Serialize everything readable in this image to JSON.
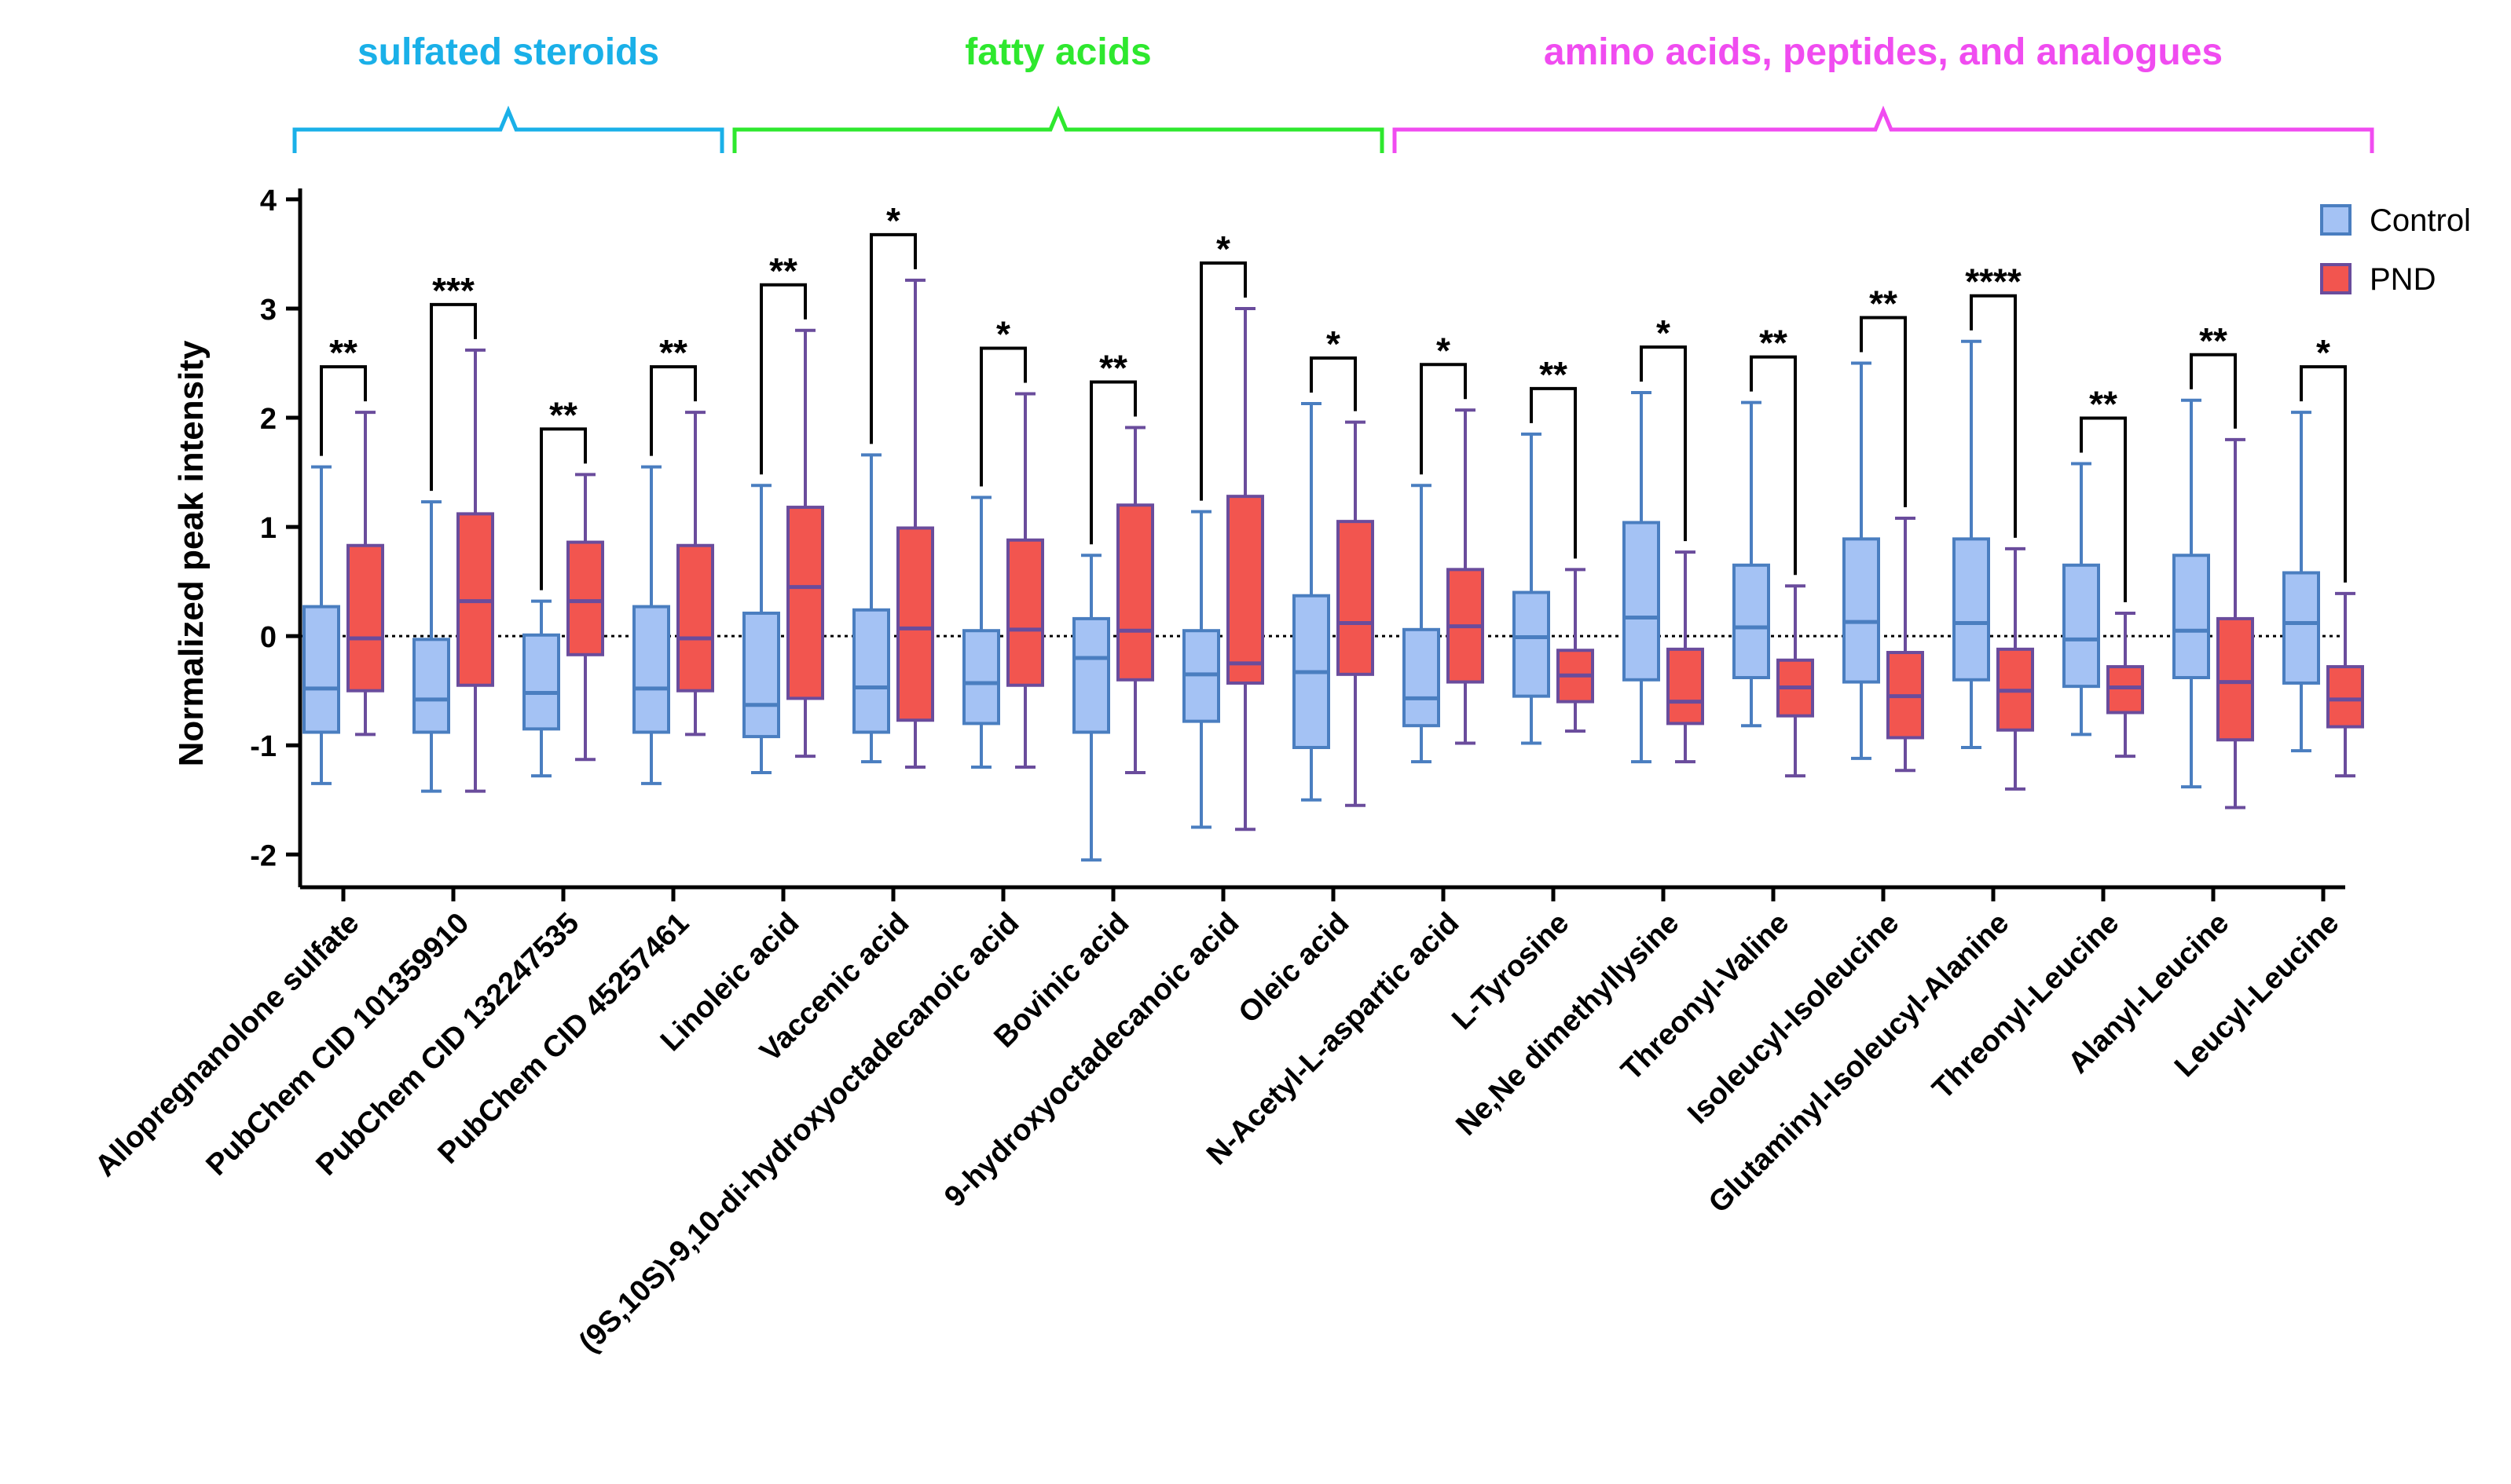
{
  "chart_data": {
    "type": "box",
    "title": "",
    "xlabel": "",
    "ylabel": "Normalized peak intensity",
    "ylim": [
      -2.3,
      4.1
    ],
    "yticks": [
      -2,
      -1,
      0,
      1,
      2,
      3,
      4
    ],
    "ytick_labels": [
      "-2",
      "-1",
      "0",
      "1",
      "2",
      "3",
      "4"
    ],
    "reference_line": 0,
    "legend": [
      {
        "name": "Control",
        "color": "#a4c2f4",
        "edge": "#4a7ec0"
      },
      {
        "name": "PND",
        "color": "#f2554f",
        "edge": "#6a4c9c"
      }
    ],
    "legend_position": "top-right",
    "groups": [
      {
        "label": "sulfated steroids",
        "color": "#1ab0e8",
        "start": 0,
        "end": 3
      },
      {
        "label": "fatty acids",
        "color": "#2ee82e",
        "start": 4,
        "end": 9
      },
      {
        "label": "amino acids, peptides, and analogues",
        "color": "#f04cf0",
        "start": 10,
        "end": 18
      }
    ],
    "categories": [
      "Allopregnanolone sulfate",
      "PubChem CID 101359910",
      "PubChem CID 132247535",
      "PubChem CID 45257461",
      "Linoleic acid",
      "Vaccenic acid",
      "(9S,10S)-9,10-di-hydroxyoctadecanoic acid",
      "Bovinic acid",
      "9-hydroxyoctadecanoic acid",
      "Oleic acid",
      "N-Acetyl-L-aspartic acid",
      "L-Tyrosine",
      "Ne,Ne dimethyllysine",
      "Threonyl-Valine",
      "Isoleucyl-Isoleucine",
      "Glutaminyl-Isoleucyl-Alanine",
      "Threonyl-Leucine",
      "Alanyl-Leucine",
      "Leucyl-Leucine"
    ],
    "series": [
      {
        "name": "Control",
        "boxes": [
          {
            "min": -1.35,
            "q1": -0.88,
            "median": -0.48,
            "q3": 0.27,
            "max": 1.55
          },
          {
            "min": -1.42,
            "q1": -0.88,
            "median": -0.58,
            "q3": -0.03,
            "max": 1.23
          },
          {
            "min": -1.28,
            "q1": -0.85,
            "median": -0.52,
            "q3": 0.01,
            "max": 0.32
          },
          {
            "min": -1.35,
            "q1": -0.88,
            "median": -0.48,
            "q3": 0.27,
            "max": 1.55
          },
          {
            "min": -1.25,
            "q1": -0.92,
            "median": -0.63,
            "q3": 0.21,
            "max": 1.38
          },
          {
            "min": -1.15,
            "q1": -0.88,
            "median": -0.47,
            "q3": 0.24,
            "max": 1.66
          },
          {
            "min": -1.2,
            "q1": -0.8,
            "median": -0.43,
            "q3": 0.05,
            "max": 1.27
          },
          {
            "min": -2.05,
            "q1": -0.88,
            "median": -0.2,
            "q3": 0.16,
            "max": 0.74
          },
          {
            "min": -1.75,
            "q1": -0.78,
            "median": -0.35,
            "q3": 0.05,
            "max": 1.14
          },
          {
            "min": -1.5,
            "q1": -1.02,
            "median": -0.33,
            "q3": 0.37,
            "max": 2.13
          },
          {
            "min": -1.15,
            "q1": -0.82,
            "median": -0.57,
            "q3": 0.06,
            "max": 1.38
          },
          {
            "min": -0.98,
            "q1": -0.55,
            "median": -0.01,
            "q3": 0.4,
            "max": 1.85
          },
          {
            "min": -1.15,
            "q1": -0.4,
            "median": 0.17,
            "q3": 1.04,
            "max": 2.23
          },
          {
            "min": -0.82,
            "q1": -0.38,
            "median": 0.08,
            "q3": 0.65,
            "max": 2.14
          },
          {
            "min": -1.12,
            "q1": -0.42,
            "median": 0.13,
            "q3": 0.89,
            "max": 2.5
          },
          {
            "min": -1.02,
            "q1": -0.4,
            "median": 0.12,
            "q3": 0.89,
            "max": 2.7
          },
          {
            "min": -0.9,
            "q1": -0.46,
            "median": -0.03,
            "q3": 0.65,
            "max": 1.58
          },
          {
            "min": -1.38,
            "q1": -0.38,
            "median": 0.05,
            "q3": 0.74,
            "max": 2.16
          },
          {
            "min": -1.05,
            "q1": -0.43,
            "median": 0.12,
            "q3": 0.58,
            "max": 2.05
          }
        ]
      },
      {
        "name": "PND",
        "boxes": [
          {
            "min": -0.9,
            "q1": -0.5,
            "median": -0.02,
            "q3": 0.83,
            "max": 2.05
          },
          {
            "min": -1.42,
            "q1": -0.45,
            "median": 0.32,
            "q3": 1.12,
            "max": 2.62
          },
          {
            "min": -1.13,
            "q1": -0.17,
            "median": 0.32,
            "q3": 0.86,
            "max": 1.48
          },
          {
            "min": -0.9,
            "q1": -0.5,
            "median": -0.02,
            "q3": 0.83,
            "max": 2.05
          },
          {
            "min": -1.1,
            "q1": -0.57,
            "median": 0.45,
            "q3": 1.18,
            "max": 2.8
          },
          {
            "min": -1.2,
            "q1": -0.77,
            "median": 0.07,
            "q3": 0.99,
            "max": 3.26
          },
          {
            "min": -1.2,
            "q1": -0.45,
            "median": 0.06,
            "q3": 0.88,
            "max": 2.22
          },
          {
            "min": -1.25,
            "q1": -0.4,
            "median": 0.05,
            "q3": 1.2,
            "max": 1.91
          },
          {
            "min": -1.77,
            "q1": -0.43,
            "median": -0.25,
            "q3": 1.28,
            "max": 3.0
          },
          {
            "min": -1.55,
            "q1": -0.35,
            "median": 0.12,
            "q3": 1.05,
            "max": 1.96
          },
          {
            "min": -0.98,
            "q1": -0.42,
            "median": 0.09,
            "q3": 0.61,
            "max": 2.07
          },
          {
            "min": -0.87,
            "q1": -0.6,
            "median": -0.36,
            "q3": -0.13,
            "max": 0.61
          },
          {
            "min": -1.15,
            "q1": -0.8,
            "median": -0.6,
            "q3": -0.12,
            "max": 0.77
          },
          {
            "min": -1.28,
            "q1": -0.73,
            "median": -0.47,
            "q3": -0.22,
            "max": 0.46
          },
          {
            "min": -1.23,
            "q1": -0.93,
            "median": -0.55,
            "q3": -0.15,
            "max": 1.08
          },
          {
            "min": -1.4,
            "q1": -0.86,
            "median": -0.5,
            "q3": -0.12,
            "max": 0.8
          },
          {
            "min": -1.1,
            "q1": -0.7,
            "median": -0.47,
            "q3": -0.28,
            "max": 0.21
          },
          {
            "min": -1.57,
            "q1": -0.95,
            "median": -0.42,
            "q3": 0.16,
            "max": 1.8
          },
          {
            "min": -1.28,
            "q1": -0.83,
            "median": -0.58,
            "q3": -0.28,
            "max": 0.39
          }
        ]
      }
    ],
    "significance": [
      "**",
      "***",
      "**",
      "**",
      "**",
      "*",
      "*",
      "**",
      "*",
      "*",
      "*",
      "**",
      "*",
      "**",
      "**",
      "****",
      "**",
      "**",
      "*"
    ],
    "grid": false
  }
}
